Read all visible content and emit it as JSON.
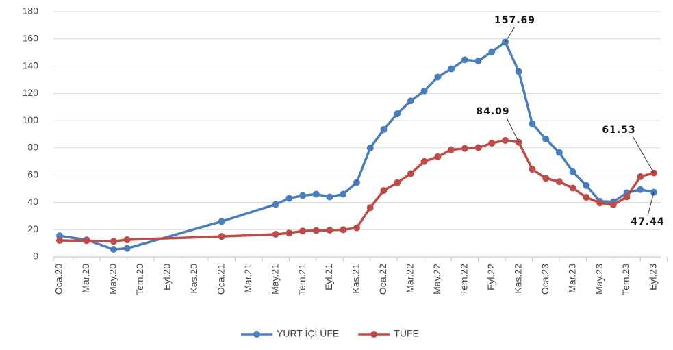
{
  "chart_data": {
    "type": "line",
    "categories": [
      "Oca.20",
      null,
      "Mar.20",
      null,
      "May.20",
      null,
      "Tem.20",
      null,
      "Eyl.20",
      null,
      "Kas.20",
      null,
      "Oca.21",
      null,
      "Mar.21",
      null,
      "May.21",
      null,
      "Tem.21",
      null,
      "Eyl.21",
      null,
      "Kas.21",
      null,
      "Oca.22",
      null,
      "Mar.22",
      null,
      "May.22",
      null,
      "Tem.22",
      null,
      "Eyl.22",
      null,
      "Kas.22",
      null,
      "Oca.23",
      null,
      "Mar.23",
      null,
      "May.23",
      null,
      "Tem.23",
      null,
      "Eyl.23"
    ],
    "series": [
      {
        "name": "YURT İÇİ ÜFE",
        "color": "#4a7ebb",
        "values": [
          15.5,
          null,
          12.5,
          null,
          5.5,
          6.2,
          null,
          null,
          null,
          null,
          null,
          null,
          26,
          null,
          null,
          null,
          38.5,
          43,
          45,
          46,
          44,
          46,
          54.6,
          79.9,
          93.5,
          105,
          114.5,
          121.8,
          132,
          138,
          144.6,
          143.8,
          150.5,
          157.69,
          136,
          97.7,
          86.5,
          76.6,
          62.4,
          52.4,
          40.8,
          40.4,
          47,
          49.4,
          47.44
        ],
        "value_labels": [
          null,
          null,
          null,
          null,
          null,
          null,
          null,
          null,
          null,
          null,
          null,
          null,
          null,
          null,
          null,
          null,
          null,
          null,
          null,
          null,
          null,
          null,
          null,
          null,
          null,
          null,
          null,
          null,
          null,
          null,
          null,
          null,
          null,
          "157.69",
          null,
          null,
          null,
          null,
          null,
          null,
          null,
          null,
          null,
          null,
          "47.44"
        ]
      },
      {
        "name": "TÜFE",
        "color": "#be4b48",
        "values": [
          12,
          null,
          11.9,
          null,
          11.4,
          12.6,
          null,
          null,
          null,
          null,
          null,
          null,
          15,
          null,
          null,
          null,
          16.6,
          17.5,
          19,
          19.3,
          19.6,
          19.9,
          21.3,
          36.1,
          48.7,
          54.4,
          61.1,
          70,
          73.5,
          78.6,
          79.6,
          80.2,
          83.45,
          85.5,
          84.09,
          64.3,
          57.7,
          55.2,
          50.5,
          43.7,
          39.6,
          38.2,
          44,
          58.9,
          61.53
        ],
        "value_labels": [
          null,
          null,
          null,
          null,
          null,
          null,
          null,
          null,
          null,
          null,
          null,
          null,
          null,
          null,
          null,
          null,
          null,
          null,
          null,
          null,
          null,
          null,
          null,
          null,
          null,
          null,
          null,
          null,
          null,
          null,
          null,
          null,
          null,
          null,
          "84.09",
          null,
          null,
          null,
          null,
          null,
          null,
          null,
          null,
          null,
          "61.53"
        ]
      }
    ],
    "ylim": [
      0,
      180
    ],
    "yticks": [
      0,
      20,
      40,
      60,
      80,
      100,
      120,
      140,
      160,
      180
    ],
    "grid": true,
    "legend": "bottom"
  }
}
